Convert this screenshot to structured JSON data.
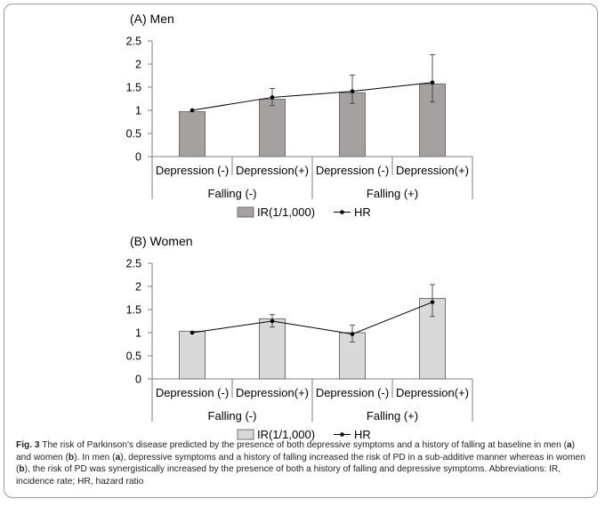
{
  "chart_data": [
    {
      "type": "bar",
      "title": "(A) Men",
      "categories": [
        "Depression (-)",
        "Depression(+)",
        "Depression (-)",
        "Depression(+)"
      ],
      "groups": [
        {
          "label": "Falling (-)",
          "span": [
            0,
            1
          ]
        },
        {
          "label": "Falling (+)",
          "span": [
            2,
            3
          ]
        }
      ],
      "ylim": [
        0,
        2.5
      ],
      "yticks": [
        "0",
        "0.5",
        "1",
        "1.5",
        "2",
        "2.5"
      ],
      "series": [
        {
          "name": "IR(1/1,000)",
          "kind": "bar",
          "color": "#a6a1a1",
          "values": [
            0.97,
            1.24,
            1.38,
            1.57
          ]
        },
        {
          "name": "HR",
          "kind": "line",
          "color": "#000000",
          "values": [
            1.0,
            1.28,
            1.41,
            1.6
          ],
          "ci_lower": [
            1.0,
            1.1,
            1.15,
            1.18
          ],
          "ci_upper": [
            1.0,
            1.47,
            1.76,
            2.2
          ]
        }
      ],
      "legend": "bottom"
    },
    {
      "type": "bar",
      "title": "(B) Women",
      "categories": [
        "Depression (-)",
        "Depression(+)",
        "Depression (-)",
        "Depression(+)"
      ],
      "groups": [
        {
          "label": "Falling (-)",
          "span": [
            0,
            1
          ]
        },
        {
          "label": "Falling (+)",
          "span": [
            2,
            3
          ]
        }
      ],
      "ylim": [
        0,
        2.5
      ],
      "yticks": [
        "0",
        "0.5",
        "1",
        "1.5",
        "2",
        "2.5"
      ],
      "series": [
        {
          "name": "IR(1/1,000)",
          "kind": "bar",
          "color": "#d9d9d9",
          "values": [
            1.03,
            1.3,
            1.0,
            1.74
          ]
        },
        {
          "name": "HR",
          "kind": "line",
          "color": "#000000",
          "values": [
            1.0,
            1.25,
            0.97,
            1.66
          ],
          "ci_lower": [
            1.0,
            1.12,
            0.8,
            1.35
          ],
          "ci_upper": [
            1.0,
            1.39,
            1.16,
            2.04
          ]
        }
      ],
      "legend": "bottom"
    }
  ],
  "caption": {
    "label": "Fig. 3",
    "parts": [
      {
        "t": " The risk of Parkinson's disease predicted by the presence of both depressive symptoms and a history of falling at baseline in men ("
      },
      {
        "t": "a",
        "b": true
      },
      {
        "t": ") and women ("
      },
      {
        "t": "b",
        "b": true
      },
      {
        "t": "). In men ("
      },
      {
        "t": "a",
        "b": true
      },
      {
        "t": "), depressive symptoms and a history of falling increased the risk of PD in a sub-additive manner whereas in women ("
      },
      {
        "t": "b",
        "b": true
      },
      {
        "t": "), the risk of PD was synergistically increased by the presence of both a history of falling and depressive symptoms. Abbreviations: IR, incidence rate; HR, hazard ratio"
      }
    ]
  }
}
